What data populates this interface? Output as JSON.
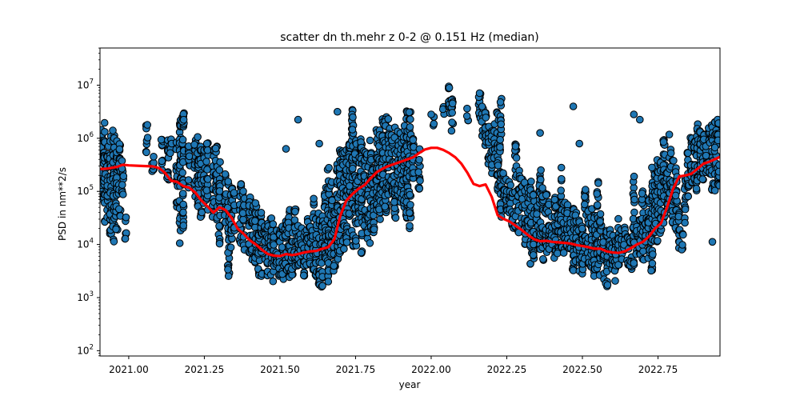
{
  "chart_data": {
    "type": "scatter",
    "title": "scatter dn th.mehr z 0-2 @ 0.151 Hz (median)",
    "xlabel": "year",
    "ylabel": "PSD in nm**2/s",
    "xlim": [
      2020.905,
      2022.955
    ],
    "ylim_log10": [
      1.9,
      7.7
    ],
    "yscale": "log",
    "grid": false,
    "x_ticks": [
      2021.0,
      2021.25,
      2021.5,
      2021.75,
      2022.0,
      2022.25,
      2022.5,
      2022.75
    ],
    "x_tick_labels": [
      "2021.00",
      "2021.25",
      "2021.50",
      "2021.75",
      "2022.00",
      "2022.25",
      "2022.50",
      "2022.75"
    ],
    "y_ticks_log10": [
      2,
      3,
      4,
      5,
      6,
      7
    ],
    "y_tick_base": "10",
    "y_tick_exponents": [
      "2",
      "3",
      "4",
      "5",
      "6",
      "7"
    ],
    "scatter": {
      "color": "#1f77b4",
      "edgecolor": "#000000",
      "clusters": [
        [
          2020.91,
          4.7,
          6.2
        ],
        [
          2020.92,
          4.4,
          6.3
        ],
        [
          2020.93,
          4.5,
          6.2
        ],
        [
          2020.94,
          4.0,
          6.1
        ],
        [
          2020.95,
          4.0,
          6.2
        ],
        [
          2020.96,
          4.2,
          6.0
        ],
        [
          2020.97,
          4.5,
          5.9
        ],
        [
          2020.98,
          4.9,
          5.7
        ],
        [
          2020.99,
          4.1,
          4.6
        ],
        [
          2021.06,
          5.7,
          6.3
        ],
        [
          2021.08,
          5.2,
          5.8
        ],
        [
          2021.11,
          5.3,
          6.0
        ],
        [
          2021.13,
          5.1,
          6.0
        ],
        [
          2021.14,
          5.5,
          6.0
        ],
        [
          2021.16,
          4.7,
          6.0
        ],
        [
          2021.17,
          4.0,
          6.5
        ],
        [
          2021.18,
          4.1,
          6.5
        ],
        [
          2021.2,
          5.0,
          5.9
        ],
        [
          2021.22,
          4.9,
          6.0
        ],
        [
          2021.23,
          4.7,
          6.2
        ],
        [
          2021.24,
          4.5,
          6.0
        ],
        [
          2021.25,
          4.7,
          5.8
        ],
        [
          2021.26,
          4.6,
          6.0
        ],
        [
          2021.28,
          4.5,
          5.8
        ],
        [
          2021.29,
          4.4,
          5.9
        ],
        [
          2021.3,
          4.0,
          5.7
        ],
        [
          2021.32,
          4.3,
          5.4
        ],
        [
          2021.33,
          3.4,
          5.3
        ],
        [
          2021.34,
          3.7,
          5.1
        ],
        [
          2021.35,
          4.2,
          5.0
        ],
        [
          2021.37,
          4.0,
          5.2
        ],
        [
          2021.38,
          3.8,
          5.1
        ],
        [
          2021.4,
          3.8,
          5.0
        ],
        [
          2021.41,
          3.7,
          4.8
        ],
        [
          2021.42,
          3.5,
          4.8
        ],
        [
          2021.43,
          3.3,
          4.6
        ],
        [
          2021.44,
          3.3,
          4.6
        ],
        [
          2021.45,
          3.6,
          4.5
        ],
        [
          2021.46,
          3.4,
          4.4
        ],
        [
          2021.47,
          3.3,
          4.5
        ],
        [
          2021.48,
          3.3,
          4.4
        ],
        [
          2021.49,
          3.5,
          4.3
        ],
        [
          2021.5,
          3.3,
          4.3
        ],
        [
          2021.51,
          3.3,
          4.4
        ],
        [
          2021.52,
          3.3,
          4.6
        ],
        [
          2021.53,
          3.3,
          4.7
        ],
        [
          2021.54,
          3.4,
          4.3
        ],
        [
          2021.55,
          3.4,
          4.7
        ],
        [
          2021.56,
          3.5,
          4.4
        ],
        [
          2021.57,
          3.6,
          4.4
        ],
        [
          2021.58,
          3.4,
          4.3
        ],
        [
          2021.59,
          3.6,
          4.5
        ],
        [
          2021.6,
          3.5,
          4.5
        ],
        [
          2021.61,
          3.5,
          4.9
        ],
        [
          2021.62,
          3.3,
          4.5
        ],
        [
          2021.63,
          3.2,
          4.6
        ],
        [
          2021.64,
          3.2,
          4.7
        ],
        [
          2021.65,
          3.6,
          5.1
        ],
        [
          2021.66,
          3.3,
          5.5
        ],
        [
          2021.67,
          3.7,
          5.2
        ],
        [
          2021.68,
          3.5,
          4.8
        ],
        [
          2021.69,
          3.7,
          5.6
        ],
        [
          2021.7,
          3.7,
          5.8
        ],
        [
          2021.71,
          3.9,
          5.8
        ],
        [
          2021.72,
          3.9,
          5.9
        ],
        [
          2021.73,
          4.1,
          5.9
        ],
        [
          2021.74,
          3.9,
          6.6
        ],
        [
          2021.75,
          3.9,
          6.0
        ],
        [
          2021.76,
          4.3,
          5.7
        ],
        [
          2021.77,
          3.8,
          6.0
        ],
        [
          2021.78,
          4.3,
          5.8
        ],
        [
          2021.79,
          4.1,
          5.7
        ],
        [
          2021.8,
          4.0,
          6.0
        ],
        [
          2021.81,
          4.2,
          5.5
        ],
        [
          2021.82,
          4.6,
          6.2
        ],
        [
          2021.83,
          4.3,
          6.2
        ],
        [
          2021.84,
          4.6,
          6.4
        ],
        [
          2021.85,
          4.6,
          6.5
        ],
        [
          2021.86,
          4.8,
          6.4
        ],
        [
          2021.87,
          4.8,
          6.1
        ],
        [
          2021.88,
          4.4,
          6.3
        ],
        [
          2021.89,
          4.9,
          6.2
        ],
        [
          2021.9,
          4.7,
          6.1
        ],
        [
          2021.91,
          4.7,
          6.3
        ],
        [
          2021.92,
          4.3,
          6.6
        ],
        [
          2021.93,
          4.3,
          6.5
        ],
        [
          2021.94,
          5.1,
          6.0
        ],
        [
          2021.96,
          5.0,
          5.9
        ],
        [
          2022.01,
          6.2,
          6.5
        ],
        [
          2022.04,
          6.3,
          6.6
        ],
        [
          2022.06,
          6.4,
          7.0
        ],
        [
          2022.07,
          6.1,
          6.8
        ],
        [
          2022.12,
          6.3,
          6.6
        ],
        [
          2022.16,
          6.2,
          6.9
        ],
        [
          2022.17,
          6.0,
          6.6
        ],
        [
          2022.18,
          5.6,
          6.5
        ],
        [
          2022.19,
          5.5,
          6.3
        ],
        [
          2022.2,
          5.3,
          6.2
        ],
        [
          2022.21,
          5.6,
          6.3
        ],
        [
          2022.22,
          5.0,
          6.6
        ],
        [
          2022.23,
          4.4,
          6.8
        ],
        [
          2022.24,
          4.9,
          5.5
        ],
        [
          2022.25,
          4.6,
          5.3
        ],
        [
          2022.26,
          4.5,
          5.2
        ],
        [
          2022.27,
          4.3,
          5.3
        ],
        [
          2022.28,
          4.3,
          5.9
        ],
        [
          2022.29,
          4.2,
          5.4
        ],
        [
          2022.3,
          4.4,
          5.3
        ],
        [
          2022.31,
          4.0,
          5.2
        ],
        [
          2022.32,
          4.2,
          5.1
        ],
        [
          2022.33,
          3.6,
          5.2
        ],
        [
          2022.34,
          3.7,
          5.0
        ],
        [
          2022.35,
          4.1,
          4.8
        ],
        [
          2022.36,
          3.9,
          5.4
        ],
        [
          2022.37,
          3.7,
          5.1
        ],
        [
          2022.38,
          3.8,
          5.0
        ],
        [
          2022.39,
          3.9,
          4.8
        ],
        [
          2022.4,
          4.0,
          4.6
        ],
        [
          2022.41,
          3.7,
          5.1
        ],
        [
          2022.42,
          3.7,
          4.6
        ],
        [
          2022.43,
          3.9,
          5.5
        ],
        [
          2022.44,
          3.8,
          4.9
        ],
        [
          2022.45,
          3.9,
          4.8
        ],
        [
          2022.46,
          3.7,
          4.5
        ],
        [
          2022.47,
          3.5,
          4.7
        ],
        [
          2022.48,
          3.6,
          4.6
        ],
        [
          2022.49,
          3.4,
          4.5
        ],
        [
          2022.5,
          3.4,
          4.4
        ],
        [
          2022.51,
          3.7,
          5.1
        ],
        [
          2022.52,
          3.6,
          4.7
        ],
        [
          2022.53,
          3.5,
          4.8
        ],
        [
          2022.54,
          3.4,
          4.7
        ],
        [
          2022.55,
          3.5,
          5.2
        ],
        [
          2022.56,
          3.4,
          4.6
        ],
        [
          2022.57,
          3.3,
          4.2
        ],
        [
          2022.58,
          3.2,
          4.3
        ],
        [
          2022.59,
          3.6,
          4.3
        ],
        [
          2022.6,
          3.4,
          4.2
        ],
        [
          2022.61,
          3.3,
          4.2
        ],
        [
          2022.62,
          3.5,
          4.5
        ],
        [
          2022.63,
          3.7,
          4.3
        ],
        [
          2022.64,
          3.8,
          4.4
        ],
        [
          2022.65,
          3.6,
          4.2
        ],
        [
          2022.66,
          3.5,
          4.2
        ],
        [
          2022.67,
          3.6,
          5.3
        ],
        [
          2022.68,
          3.8,
          4.4
        ],
        [
          2022.69,
          3.8,
          4.6
        ],
        [
          2022.7,
          3.7,
          5.1
        ],
        [
          2022.71,
          3.9,
          4.7
        ],
        [
          2022.72,
          3.7,
          4.9
        ],
        [
          2022.73,
          3.5,
          5.2
        ],
        [
          2022.74,
          4.0,
          5.4
        ],
        [
          2022.75,
          4.0,
          5.6
        ],
        [
          2022.76,
          4.1,
          5.6
        ],
        [
          2022.77,
          4.4,
          6.0
        ],
        [
          2022.78,
          4.7,
          5.9
        ],
        [
          2022.79,
          4.6,
          6.1
        ],
        [
          2022.8,
          4.4,
          5.6
        ],
        [
          2022.81,
          4.2,
          5.5
        ],
        [
          2022.82,
          3.8,
          4.6
        ],
        [
          2022.83,
          3.9,
          4.4
        ],
        [
          2022.84,
          4.4,
          5.3
        ],
        [
          2022.85,
          4.9,
          5.9
        ],
        [
          2022.86,
          5.0,
          6.1
        ],
        [
          2022.87,
          5.1,
          6.0
        ],
        [
          2022.88,
          4.9,
          6.3
        ],
        [
          2022.89,
          5.1,
          6.2
        ],
        [
          2022.9,
          5.0,
          6.1
        ],
        [
          2022.91,
          5.3,
          6.0
        ],
        [
          2022.92,
          5.3,
          6.2
        ],
        [
          2022.93,
          5.0,
          6.3
        ],
        [
          2022.94,
          5.0,
          6.4
        ],
        [
          2022.95,
          5.1,
          6.5
        ]
      ],
      "outliers": [
        [
          2021.52,
          5.8
        ],
        [
          2021.56,
          6.35
        ],
        [
          2021.63,
          5.9
        ],
        [
          2021.69,
          6.5
        ],
        [
          2021.73,
          5.1
        ],
        [
          2022.0,
          6.45
        ],
        [
          2022.06,
          6.95
        ],
        [
          2022.16,
          6.85
        ],
        [
          2022.36,
          6.1
        ],
        [
          2022.47,
          6.6
        ],
        [
          2022.49,
          5.9
        ],
        [
          2022.67,
          6.45
        ],
        [
          2022.69,
          6.35
        ],
        [
          2022.73,
          5.45
        ],
        [
          2022.93,
          4.05
        ]
      ]
    },
    "median_line": {
      "color": "#ff0000",
      "x": [
        2020.905,
        2020.93,
        2020.96,
        2020.98,
        2021.0,
        2021.04,
        2021.08,
        2021.1,
        2021.12,
        2021.14,
        2021.16,
        2021.18,
        2021.2,
        2021.22,
        2021.24,
        2021.26,
        2021.28,
        2021.3,
        2021.32,
        2021.34,
        2021.36,
        2021.38,
        2021.4,
        2021.42,
        2021.44,
        2021.46,
        2021.48,
        2021.5,
        2021.52,
        2021.54,
        2021.56,
        2021.58,
        2021.6,
        2021.62,
        2021.64,
        2021.66,
        2021.68,
        2021.7,
        2021.72,
        2021.74,
        2021.76,
        2021.78,
        2021.8,
        2021.82,
        2021.84,
        2021.86,
        2021.88,
        2021.9,
        2021.92,
        2021.94,
        2021.96,
        2021.98,
        2022.0,
        2022.02,
        2022.04,
        2022.06,
        2022.08,
        2022.1,
        2022.12,
        2022.14,
        2022.16,
        2022.18,
        2022.2,
        2022.22,
        2022.24,
        2022.26,
        2022.28,
        2022.3,
        2022.32,
        2022.34,
        2022.36,
        2022.38,
        2022.4,
        2022.42,
        2022.44,
        2022.46,
        2022.48,
        2022.5,
        2022.52,
        2022.54,
        2022.56,
        2022.58,
        2022.6,
        2022.62,
        2022.64,
        2022.66,
        2022.68,
        2022.7,
        2022.72,
        2022.74,
        2022.76,
        2022.78,
        2022.8,
        2022.82,
        2022.84,
        2022.86,
        2022.88,
        2022.9,
        2022.92,
        2022.955
      ],
      "y_log10": [
        5.42,
        5.43,
        5.46,
        5.5,
        5.49,
        5.48,
        5.47,
        5.44,
        5.35,
        5.2,
        5.18,
        5.1,
        5.07,
        4.98,
        4.83,
        4.72,
        4.6,
        4.7,
        4.65,
        4.5,
        4.3,
        4.2,
        4.08,
        4.0,
        3.9,
        3.82,
        3.79,
        3.78,
        3.82,
        3.8,
        3.82,
        3.85,
        3.87,
        3.88,
        3.92,
        3.95,
        4.1,
        4.55,
        4.83,
        4.95,
        5.05,
        5.12,
        5.25,
        5.36,
        5.43,
        5.48,
        5.52,
        5.56,
        5.6,
        5.64,
        5.72,
        5.79,
        5.82,
        5.82,
        5.78,
        5.72,
        5.64,
        5.52,
        5.35,
        5.14,
        5.1,
        5.13,
        4.9,
        4.55,
        4.48,
        4.43,
        4.35,
        4.27,
        4.18,
        4.1,
        4.06,
        4.07,
        4.05,
        4.04,
        4.03,
        4.02,
        3.99,
        3.97,
        3.95,
        3.92,
        3.92,
        3.87,
        3.85,
        3.84,
        3.87,
        3.93,
        4.0,
        4.05,
        4.15,
        4.3,
        4.4,
        4.7,
        5.05,
        5.28,
        5.3,
        5.33,
        5.42,
        5.52,
        5.56,
        5.65
      ]
    }
  }
}
